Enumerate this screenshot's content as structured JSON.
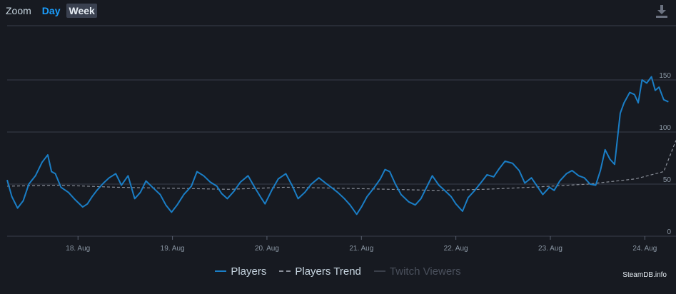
{
  "zoom": {
    "label": "Zoom",
    "day": "Day",
    "week": "Week"
  },
  "download_icon": "download-icon",
  "credit": "SteamDB.info",
  "colors": {
    "players": "#1a7ec6",
    "trend": "#8a8f99",
    "twitch": "#3a3f4a",
    "grid": "#3a3f4a",
    "background": "#171a21"
  },
  "chart_data": {
    "type": "line",
    "x_tick_labels": [
      "18. Aug",
      "19. Aug",
      "20. Aug",
      "21. Aug",
      "22. Aug",
      "23. Aug",
      "24. Aug"
    ],
    "y_tick_labels": [
      "0",
      "50",
      "100",
      "150"
    ],
    "ylim": [
      0,
      150
    ],
    "grid": true,
    "legend": {
      "placement": "bottom",
      "entries": [
        "Players",
        "Players Trend",
        "Twitch Viewers"
      ]
    },
    "series": [
      {
        "name": "Players",
        "x": [
          17.25,
          17.3,
          17.36,
          17.42,
          17.48,
          17.55,
          17.62,
          17.68,
          17.72,
          17.76,
          17.82,
          17.9,
          17.97,
          18.05,
          18.1,
          18.15,
          18.2,
          18.27,
          18.33,
          18.4,
          18.46,
          18.53,
          18.6,
          18.66,
          18.72,
          18.8,
          18.87,
          18.93,
          18.99,
          19.05,
          19.12,
          19.2,
          19.26,
          19.33,
          19.4,
          19.47,
          19.52,
          19.58,
          19.65,
          19.72,
          19.8,
          19.87,
          19.93,
          19.98,
          20.05,
          20.12,
          20.2,
          20.27,
          20.33,
          20.4,
          20.47,
          20.55,
          20.62,
          20.68,
          20.75,
          20.82,
          20.88,
          20.95,
          21.0,
          21.06,
          21.13,
          21.2,
          21.25,
          21.3,
          21.36,
          21.42,
          21.5,
          21.57,
          21.63,
          21.69,
          21.75,
          21.82,
          21.88,
          21.95,
          22.0,
          22.07,
          22.13,
          22.2,
          22.27,
          22.33,
          22.4,
          22.46,
          22.52,
          22.6,
          22.67,
          22.73,
          22.8,
          22.86,
          22.92,
          22.99,
          23.04,
          23.1,
          23.17,
          23.23,
          23.3,
          23.36,
          23.42,
          23.48,
          23.53,
          23.58,
          23.63,
          23.68,
          23.74,
          23.78,
          23.84,
          23.89,
          23.93,
          23.97,
          24.02,
          24.07,
          24.11,
          24.15,
          24.2,
          24.25
        ],
        "values": [
          54,
          38,
          27,
          34,
          50,
          58,
          71,
          78,
          62,
          60,
          47,
          42,
          35,
          28,
          31,
          38,
          44,
          51,
          56,
          60,
          49,
          58,
          36,
          42,
          53,
          46,
          40,
          30,
          23,
          30,
          40,
          48,
          62,
          58,
          52,
          48,
          41,
          36,
          43,
          52,
          58,
          47,
          38,
          31,
          44,
          55,
          60,
          48,
          36,
          42,
          50,
          56,
          51,
          47,
          42,
          36,
          30,
          21,
          28,
          38,
          46,
          55,
          64,
          62,
          50,
          40,
          33,
          30,
          36,
          47,
          58,
          49,
          44,
          38,
          31,
          24,
          37,
          44,
          52,
          59,
          57,
          65,
          72,
          70,
          63,
          51,
          56,
          48,
          40,
          47,
          44,
          53,
          60,
          63,
          58,
          56,
          50,
          49,
          63,
          83,
          74,
          69,
          118,
          128,
          138,
          136,
          128,
          150,
          147,
          153,
          140,
          143,
          131,
          129
        ]
      },
      {
        "name": "Players Trend",
        "x": [
          17.25,
          17.8,
          18.4,
          19.0,
          19.6,
          20.2,
          20.8,
          21.3,
          21.8,
          22.3,
          22.8,
          23.4,
          23.9,
          24.2,
          24.33
        ],
        "values": [
          48,
          49,
          47,
          46,
          45,
          47,
          46,
          45,
          44,
          45,
          47,
          50,
          55,
          62,
          92
        ]
      }
    ]
  }
}
